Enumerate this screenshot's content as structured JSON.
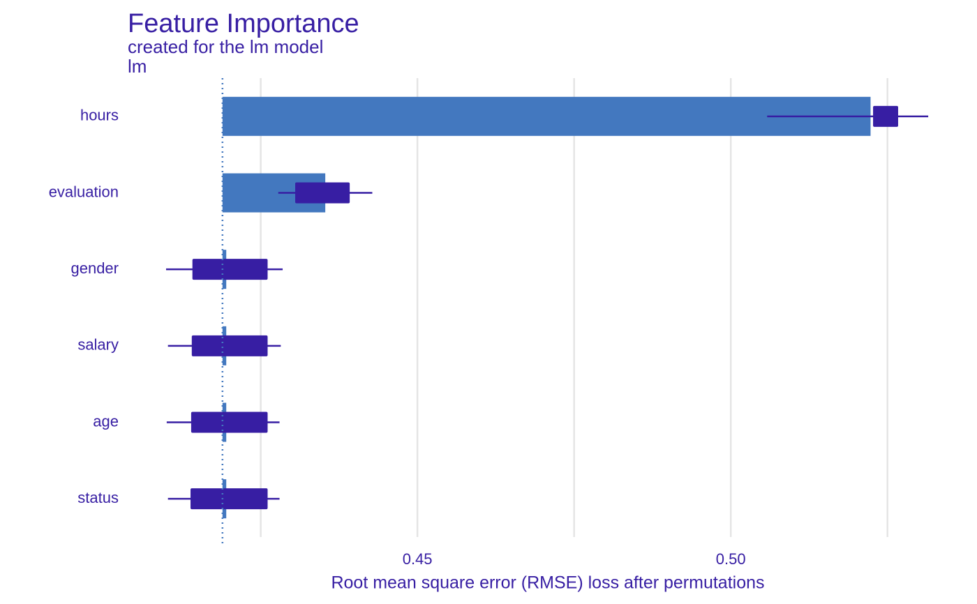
{
  "chart_data": {
    "type": "bar",
    "title": "Feature Importance",
    "subtitle": "created for the lm model",
    "facet_label": "lm",
    "x_label": "Root mean square error (RMSE) loss after permutations",
    "categories": [
      "hours",
      "evaluation",
      "gender",
      "salary",
      "age",
      "status"
    ],
    "baseline": 0.4189,
    "values": [
      0.5223,
      0.4353,
      0.4195,
      0.4195,
      0.4195,
      0.4195
    ],
    "box_min": [
      0.5058,
      0.4278,
      0.4099,
      0.4102,
      0.41,
      0.4102
    ],
    "box_q1": [
      0.5227,
      0.4305,
      0.4141,
      0.414,
      0.4139,
      0.4138
    ],
    "box_q3": [
      0.5267,
      0.4392,
      0.4261,
      0.4261,
      0.4261,
      0.4261
    ],
    "box_max": [
      0.5315,
      0.4428,
      0.4285,
      0.4282,
      0.428,
      0.428
    ],
    "color": "#4378bf",
    "box_color": "#371ea3",
    "xlim": [
      0.404,
      0.5365
    ],
    "xticks": [
      0.45,
      {
        "value": 0.5,
        "label": "0.50"
      }
    ],
    "minor_xticks": [
      0.425,
      0.475,
      0.525
    ],
    "grid": true
  }
}
